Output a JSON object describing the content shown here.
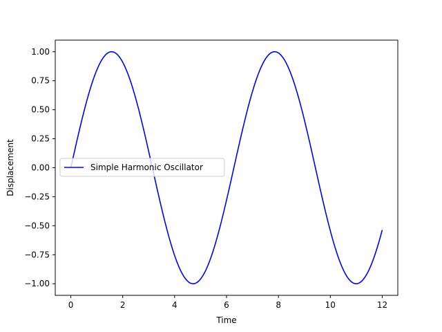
{
  "chart_data": {
    "type": "line",
    "title": "",
    "xlabel": "Time",
    "ylabel": "Displacement",
    "xlim": [
      -0.6,
      12.6
    ],
    "ylim": [
      -1.1,
      1.1
    ],
    "xticks": [
      0,
      2,
      4,
      6,
      8,
      10,
      12
    ],
    "xtick_labels": [
      "0",
      "2",
      "4",
      "6",
      "8",
      "10",
      "12"
    ],
    "yticks": [
      -1.0,
      -0.75,
      -0.5,
      -0.25,
      0.0,
      0.25,
      0.5,
      0.75,
      1.0
    ],
    "ytick_labels": [
      "−1.00",
      "−0.75",
      "−0.50",
      "−0.25",
      "0.00",
      "0.25",
      "0.50",
      "0.75",
      "1.00"
    ],
    "grid": false,
    "legend_position": "center-left",
    "series": [
      {
        "name": "Simple Harmonic Oscillator",
        "color": "#0000ff",
        "function": "sin(t)",
        "x": [
          0,
          0.5,
          1,
          1.5,
          1.5708,
          2,
          2.5,
          3,
          3.1416,
          3.5,
          4,
          4.5,
          4.7124,
          5,
          5.5,
          6,
          6.2832,
          6.5,
          7,
          7.5,
          7.854,
          8,
          8.5,
          9,
          9.4248,
          9.5,
          10,
          10.5,
          10.9956,
          11,
          11.5,
          12
        ],
        "y": [
          0.0,
          0.479,
          0.841,
          0.997,
          1.0,
          0.909,
          0.598,
          0.141,
          0.0,
          -0.351,
          -0.757,
          -0.978,
          -1.0,
          -0.959,
          -0.706,
          -0.279,
          0.0,
          0.215,
          0.657,
          0.938,
          1.0,
          0.989,
          0.798,
          0.412,
          0.0,
          -0.075,
          -0.544,
          -0.88,
          -1.0,
          -1.0,
          -0.875,
          -0.537
        ]
      }
    ]
  }
}
